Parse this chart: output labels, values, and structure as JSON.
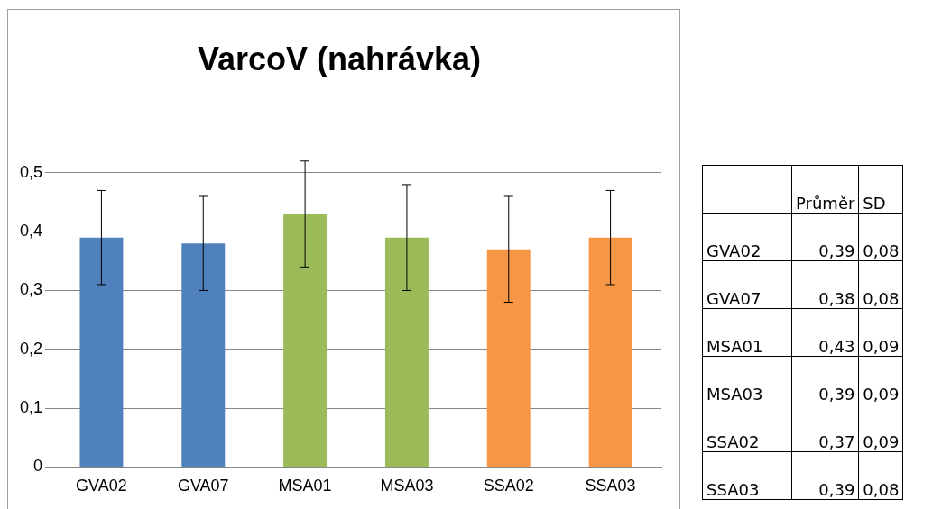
{
  "chart_data": [
    {
      "type": "bar",
      "title": "VarcoV (nahrávka)",
      "categories": [
        "GVA02",
        "GVA07",
        "MSA01",
        "MSA03",
        "SSA02",
        "SSA03"
      ],
      "values": [
        0.39,
        0.38,
        0.43,
        0.39,
        0.37,
        0.39
      ],
      "colors": [
        "#4f81bd",
        "#4f81bd",
        "#9bbb59",
        "#9bbb59",
        "#f79646",
        "#f79646"
      ],
      "errors": [
        0.08,
        0.08,
        0.09,
        0.09,
        0.09,
        0.08
      ],
      "ylim": [
        0,
        0.55
      ],
      "yticks": [
        0,
        {
          "value": 0.1,
          "label": "0,1"
        },
        {
          "value": 0.2,
          "label": "0,2"
        },
        {
          "value": 0.3,
          "label": "0,3"
        },
        {
          "value": 0.4,
          "label": "0,4"
        },
        {
          "value": 0.5,
          "label": "0,5"
        }
      ],
      "grid": "y",
      "legend": false
    },
    {
      "type": "other",
      "annotations": [
        "Průměr",
        "SD",
        "GVA02",
        "0,39",
        "0,08",
        "GVA07",
        "0,38",
        "0,08",
        "MSA01",
        "0,43",
        "0,09",
        "MSA03",
        "0,39",
        "0,09",
        "SSA02",
        "0,37",
        "0,09",
        "SSA03",
        "0,39",
        "0,08"
      ]
    }
  ]
}
